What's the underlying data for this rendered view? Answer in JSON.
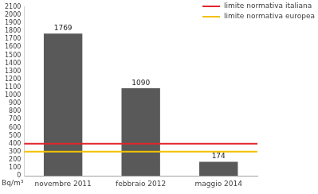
{
  "chart_data": {
    "type": "bar",
    "categories": [
      "novembre 2011",
      "febbraio 2012",
      "maggio 2014"
    ],
    "values": [
      1769,
      1090,
      174
    ],
    "color": "#595959",
    "data_labels": true,
    "ylabel": "Bq/m³",
    "ylim": [
      0,
      2100
    ],
    "yticks": [
      0,
      100,
      200,
      300,
      400,
      500,
      600,
      700,
      800,
      900,
      1000,
      1100,
      1200,
      1300,
      1400,
      1500,
      1600,
      1700,
      1800,
      1900,
      2000,
      2100
    ],
    "grid": false,
    "legend": "upper right",
    "reference_lines": [
      {
        "name": "limite normativa italiana",
        "value": 400,
        "color": "#e3242b"
      },
      {
        "name": "limite normativa europea",
        "value": 300,
        "color": "#f2c200"
      }
    ]
  }
}
